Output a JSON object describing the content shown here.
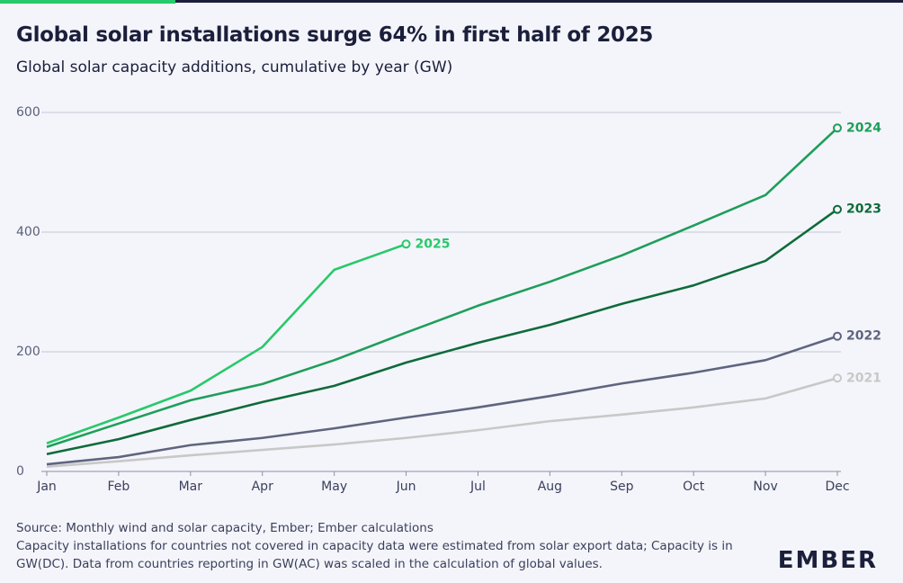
{
  "chart_data": {
    "type": "line",
    "title": "Global solar installations surge 64% in first half of 2025",
    "subtitle": "Global solar capacity additions, cumulative by year (GW)",
    "categories": [
      "Jan",
      "Feb",
      "Mar",
      "Apr",
      "May",
      "Jun",
      "Jul",
      "Aug",
      "Sep",
      "Oct",
      "Nov",
      "Dec"
    ],
    "series": [
      {
        "name": "2021",
        "color": "#c8c8c8",
        "values": [
          8,
          17,
          27,
          36,
          45,
          56,
          69,
          84,
          95,
          107,
          122,
          156
        ]
      },
      {
        "name": "2022",
        "color": "#5f6580",
        "values": [
          12,
          24,
          44,
          56,
          72,
          90,
          107,
          126,
          147,
          165,
          186,
          226
        ]
      },
      {
        "name": "2023",
        "color": "#0e6b3a",
        "values": [
          29,
          54,
          86,
          116,
          143,
          182,
          215,
          245,
          280,
          311,
          352,
          438
        ]
      },
      {
        "name": "2024",
        "color": "#1e9e5a",
        "values": [
          41,
          80,
          119,
          146,
          186,
          232,
          277,
          317,
          361,
          411,
          462,
          574
        ]
      },
      {
        "name": "2025",
        "color": "#27c96a",
        "values": [
          47,
          90,
          135,
          208,
          337,
          380,
          null,
          null,
          null,
          null,
          null,
          null
        ]
      }
    ],
    "ylim": [
      0,
      600
    ],
    "yticks": [
      0,
      200,
      400,
      600
    ],
    "grid": true,
    "source": "Source: Monthly wind and solar capacity, Ember; Ember calculations",
    "note": "Capacity installations for countries not covered in capacity data were estimated from solar export data; Capacity is in GW(DC). Data from countries reporting in GW(AC) was scaled in the calculation of global values.",
    "logo": "EMBER"
  }
}
